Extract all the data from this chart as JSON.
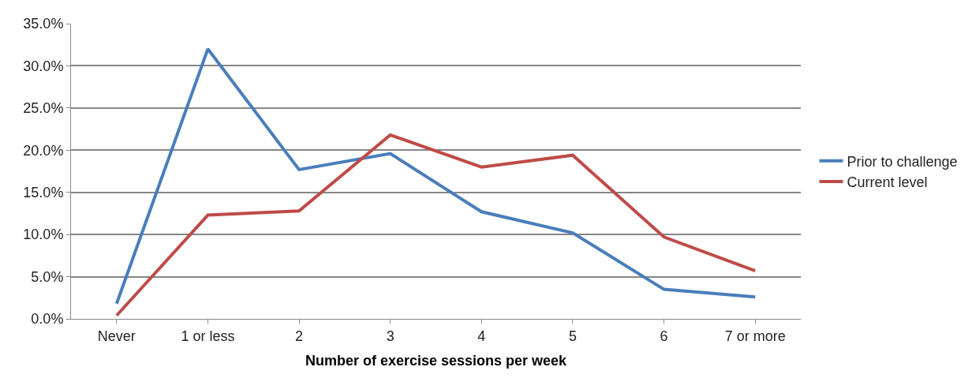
{
  "chart_data": {
    "type": "line",
    "xlabel": "Number of exercise sessions per week",
    "categories": [
      "Never",
      "1 or less",
      "2",
      "3",
      "4",
      "5",
      "6",
      "7 or more"
    ],
    "series": [
      {
        "name": "Prior to challenge",
        "color": "#4a7ebb",
        "values": [
          1.8,
          32.0,
          17.7,
          19.6,
          12.7,
          10.2,
          3.5,
          2.6
        ]
      },
      {
        "name": "Current level",
        "color": "#be4b48",
        "values": [
          0.4,
          12.3,
          12.8,
          21.8,
          18.0,
          19.4,
          9.7,
          5.7
        ]
      }
    ],
    "ylim": [
      0,
      35
    ],
    "yticks": [
      {
        "value": 0,
        "label": "0.0%"
      },
      {
        "value": 5,
        "label": "5.0%"
      },
      {
        "value": 10,
        "label": "10.0%"
      },
      {
        "value": 15,
        "label": "15.0%"
      },
      {
        "value": 20,
        "label": "20.0%"
      },
      {
        "value": 25,
        "label": "25.0%"
      },
      {
        "value": 30,
        "label": "30.0%"
      },
      {
        "value": 35,
        "label": "35.0%"
      }
    ],
    "grid": "y",
    "legend": "right",
    "marker": "none",
    "line_style": "solid"
  }
}
